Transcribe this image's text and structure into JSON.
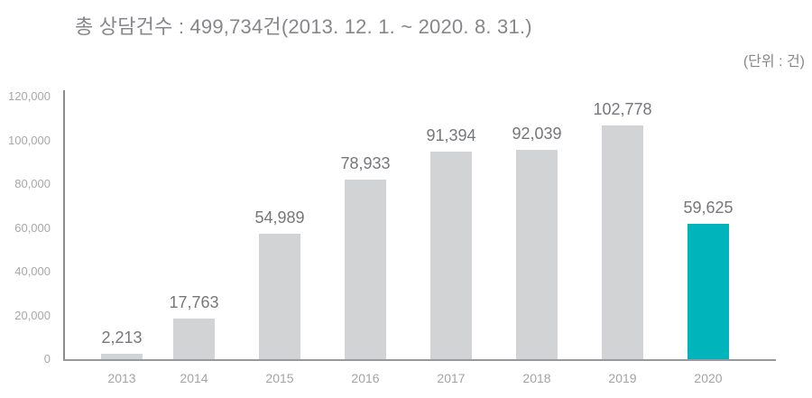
{
  "chart_data": {
    "type": "bar",
    "title": "총 상담건수 : 499,734건(2013. 12. 1. ~ 2020. 8. 31.)",
    "unit_label": "(단위 : 건)",
    "categories": [
      "2013",
      "2014",
      "2015",
      "2016",
      "2017",
      "2018",
      "2019",
      "2020"
    ],
    "values": [
      2213,
      17763,
      54989,
      78933,
      91394,
      92039,
      102778,
      59625
    ],
    "value_labels": [
      "2,213",
      "17,763",
      "54,989",
      "78,933",
      "91,394",
      "92,039",
      "102,778",
      "59,625"
    ],
    "highlight_index": 7,
    "y_axis": {
      "ticks": [
        0,
        20000,
        40000,
        60000,
        80000,
        100000,
        120000
      ],
      "tick_labels": [
        "0",
        "20,000",
        "40,000",
        "60,000",
        "80,000",
        "100,000",
        "120,000"
      ],
      "ylim": [
        0,
        120000
      ]
    },
    "xlabel": "",
    "ylabel": "",
    "legend": "none",
    "grid": "off",
    "colors": {
      "bar": "#d1d3d4",
      "bar_highlight": "#00b4bb",
      "title_text": "#85878a",
      "value_text": "#75777a",
      "tick_text": "#a6a8ab",
      "x_label_text": "#a1a3a6",
      "axis_line": "#8a8c8e",
      "background": "#ffffff"
    }
  }
}
